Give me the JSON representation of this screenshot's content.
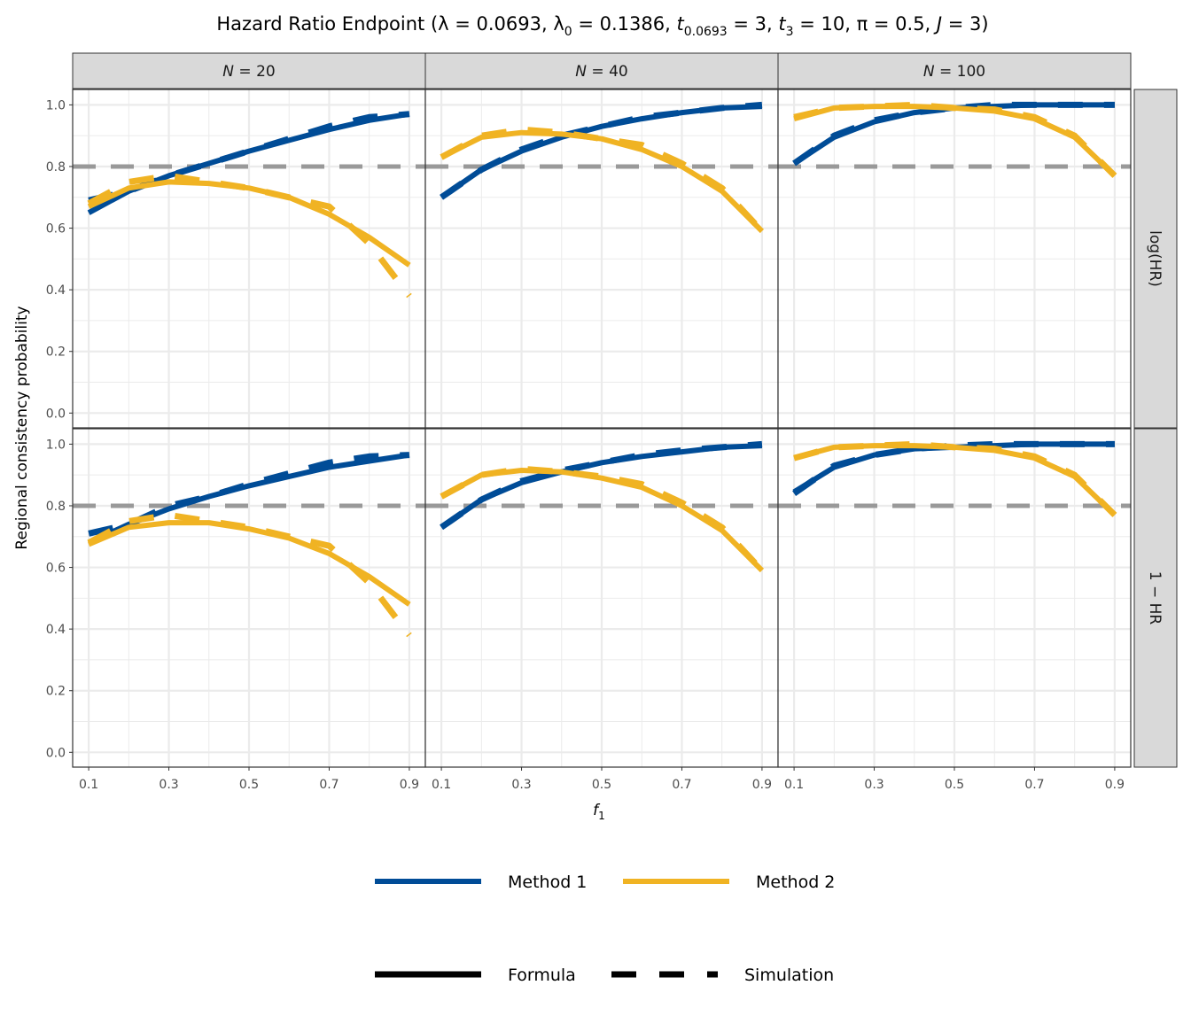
{
  "chart_data": {
    "type": "line",
    "title_parts": [
      {
        "text": "Hazard Ratio Endpoint  (λ = 0.0693, λ"
      },
      {
        "sub": "0"
      },
      {
        "text": " = 0.1386, "
      },
      {
        "text": "t",
        "italic": true
      },
      {
        "sub": "0.0693"
      },
      {
        "text": " = 3, "
      },
      {
        "text": "t",
        "italic": true
      },
      {
        "sub": "3"
      },
      {
        "text": " = 10, π = 0.5, "
      },
      {
        "text": "J",
        "italic": true
      },
      {
        "text": " = 3)"
      }
    ],
    "xlabel": "f",
    "xlabel_sub": "1",
    "ylabel": "Regional consistency probability",
    "xlim": [
      0.06,
      0.94
    ],
    "ylim": [
      -0.048,
      1.05
    ],
    "x_ticks": [
      "0.1",
      "0.3",
      "0.5",
      "0.7",
      "0.9"
    ],
    "y_ticks": [
      "0.0",
      "0.2",
      "0.4",
      "0.6",
      "0.8",
      "1.0"
    ],
    "grid": true,
    "reference_line": {
      "y": 0.8,
      "color": "#999999",
      "linetype": "dashed"
    },
    "columns": [
      "N = 20",
      "N = 40",
      "N = 100"
    ],
    "rows": [
      "log(HR)",
      "1 − HR"
    ],
    "x": [
      0.1,
      0.2,
      0.3,
      0.4,
      0.5,
      0.6,
      0.7,
      0.8,
      0.9
    ],
    "colors": {
      "Method 1": "#004C97",
      "Method 2": "#F0B323"
    },
    "legend_color": {
      "items": [
        "Method 1",
        "Method 2"
      ],
      "placement": "bottom"
    },
    "legend_linetype": {
      "items": [
        "Formula",
        "Simulation"
      ],
      "placement": "bottom"
    },
    "panels": [
      {
        "row": 0,
        "col": 0,
        "series": [
          {
            "method": "Method 1",
            "type": "Formula",
            "values": [
              0.65,
              0.72,
              0.77,
              0.81,
              0.85,
              0.885,
              0.92,
              0.95,
              0.97
            ]
          },
          {
            "method": "Method 1",
            "type": "Simulation",
            "values": [
              0.69,
              0.72,
              0.77,
              0.81,
              0.85,
              0.89,
              0.93,
              0.96,
              0.97
            ]
          },
          {
            "method": "Method 2",
            "type": "Formula",
            "values": [
              0.67,
              0.73,
              0.75,
              0.745,
              0.73,
              0.7,
              0.645,
              0.57,
              0.48
            ]
          },
          {
            "method": "Method 2",
            "type": "Simulation",
            "values": [
              0.68,
              0.75,
              0.77,
              0.75,
              0.73,
              0.7,
              0.67,
              0.55,
              0.38
            ]
          }
        ]
      },
      {
        "row": 0,
        "col": 1,
        "series": [
          {
            "method": "Method 1",
            "type": "Formula",
            "values": [
              0.7,
              0.79,
              0.85,
              0.895,
              0.93,
              0.955,
              0.975,
              0.99,
              0.995
            ]
          },
          {
            "method": "Method 1",
            "type": "Simulation",
            "values": [
              0.7,
              0.79,
              0.855,
              0.9,
              0.93,
              0.96,
              0.975,
              0.99,
              1.0
            ]
          },
          {
            "method": "Method 2",
            "type": "Formula",
            "values": [
              0.83,
              0.895,
              0.91,
              0.905,
              0.89,
              0.855,
              0.8,
              0.72,
              0.59
            ]
          },
          {
            "method": "Method 2",
            "type": "Simulation",
            "values": [
              0.83,
              0.9,
              0.92,
              0.91,
              0.89,
              0.87,
              0.81,
              0.73,
              0.59
            ]
          }
        ]
      },
      {
        "row": 0,
        "col": 2,
        "series": [
          {
            "method": "Method 1",
            "type": "Formula",
            "values": [
              0.81,
              0.895,
              0.945,
              0.975,
              0.99,
              0.995,
              1.0,
              1.0,
              1.0
            ]
          },
          {
            "method": "Method 1",
            "type": "Simulation",
            "values": [
              0.81,
              0.9,
              0.95,
              0.975,
              0.99,
              1.0,
              1.0,
              1.0,
              1.0
            ]
          },
          {
            "method": "Method 2",
            "type": "Formula",
            "values": [
              0.955,
              0.99,
              0.995,
              0.995,
              0.99,
              0.98,
              0.955,
              0.895,
              0.77
            ]
          },
          {
            "method": "Method 2",
            "type": "Simulation",
            "values": [
              0.96,
              0.99,
              0.995,
              1.0,
              0.99,
              0.985,
              0.96,
              0.9,
              0.77
            ]
          }
        ]
      },
      {
        "row": 1,
        "col": 0,
        "series": [
          {
            "method": "Method 1",
            "type": "Formula",
            "values": [
              0.68,
              0.74,
              0.79,
              0.83,
              0.865,
              0.895,
              0.925,
              0.945,
              0.965
            ]
          },
          {
            "method": "Method 1",
            "type": "Simulation",
            "values": [
              0.71,
              0.74,
              0.8,
              0.83,
              0.87,
              0.905,
              0.94,
              0.96,
              0.965
            ]
          },
          {
            "method": "Method 2",
            "type": "Formula",
            "values": [
              0.675,
              0.73,
              0.745,
              0.745,
              0.725,
              0.695,
              0.645,
              0.57,
              0.48
            ]
          },
          {
            "method": "Method 2",
            "type": "Simulation",
            "values": [
              0.68,
              0.75,
              0.77,
              0.75,
              0.73,
              0.7,
              0.67,
              0.55,
              0.38
            ]
          }
        ]
      },
      {
        "row": 1,
        "col": 1,
        "series": [
          {
            "method": "Method 1",
            "type": "Formula",
            "values": [
              0.73,
              0.82,
              0.875,
              0.91,
              0.94,
              0.96,
              0.975,
              0.99,
              0.995
            ]
          },
          {
            "method": "Method 1",
            "type": "Simulation",
            "values": [
              0.73,
              0.82,
              0.88,
              0.915,
              0.94,
              0.965,
              0.98,
              0.99,
              1.0
            ]
          },
          {
            "method": "Method 2",
            "type": "Formula",
            "values": [
              0.83,
              0.9,
              0.915,
              0.91,
              0.89,
              0.86,
              0.8,
              0.72,
              0.59
            ]
          },
          {
            "method": "Method 2",
            "type": "Simulation",
            "values": [
              0.83,
              0.9,
              0.92,
              0.91,
              0.895,
              0.87,
              0.81,
              0.73,
              0.59
            ]
          }
        ]
      },
      {
        "row": 1,
        "col": 2,
        "series": [
          {
            "method": "Method 1",
            "type": "Formula",
            "values": [
              0.845,
              0.925,
              0.965,
              0.985,
              0.99,
              0.995,
              1.0,
              1.0,
              1.0
            ]
          },
          {
            "method": "Method 1",
            "type": "Simulation",
            "values": [
              0.84,
              0.93,
              0.965,
              0.985,
              0.995,
              1.0,
              1.0,
              1.0,
              1.0
            ]
          },
          {
            "method": "Method 2",
            "type": "Formula",
            "values": [
              0.955,
              0.99,
              0.995,
              0.995,
              0.99,
              0.98,
              0.955,
              0.895,
              0.77
            ]
          },
          {
            "method": "Method 2",
            "type": "Simulation",
            "values": [
              0.955,
              0.99,
              0.995,
              1.0,
              0.99,
              0.985,
              0.96,
              0.9,
              0.77
            ]
          }
        ]
      }
    ]
  }
}
